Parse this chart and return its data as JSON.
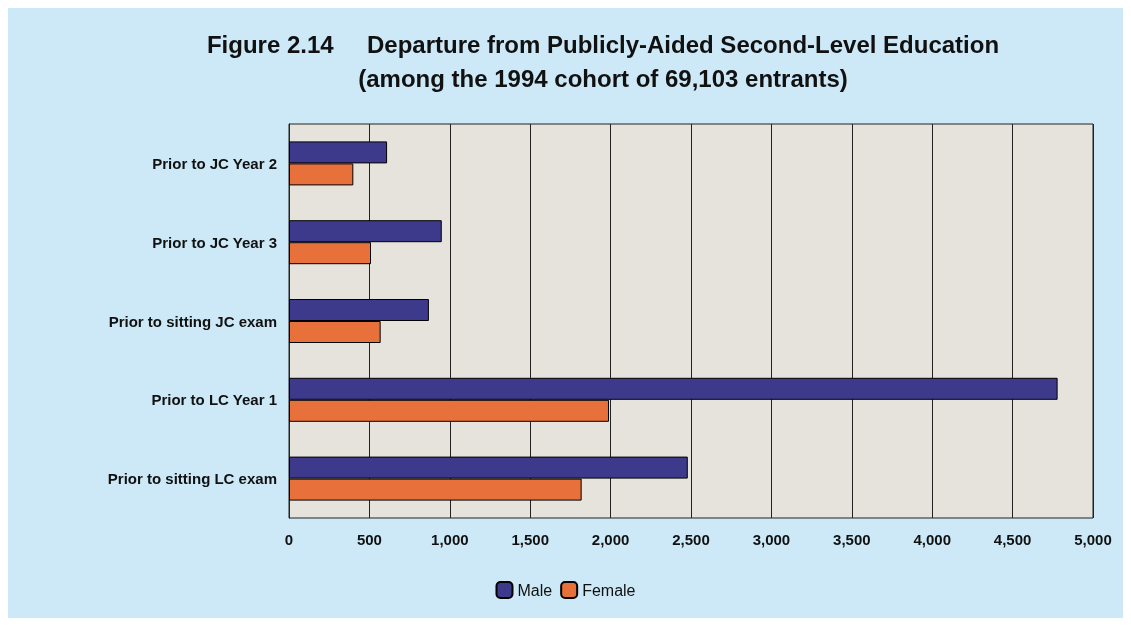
{
  "chart_data": {
    "type": "bar",
    "orientation": "horizontal",
    "title": "Figure 2.14     Departure from Publicly-Aided Second-Level Education\n(among the 1994 cohort of 69,103 entrants)",
    "categories": [
      "Prior to JC Year 2",
      "Prior to JC Year 3",
      "Prior to sitting JC exam",
      "Prior to LC Year 1",
      "Prior to sitting LC exam"
    ],
    "series": [
      {
        "name": "Male",
        "color": "#3d3a8c",
        "values": [
          610,
          950,
          870,
          4780,
          2480
        ]
      },
      {
        "name": "Female",
        "color": "#e8703a",
        "values": [
          400,
          510,
          570,
          1990,
          1820
        ]
      }
    ],
    "xlim": [
      0,
      5000
    ],
    "xticks": [
      {
        "value": 0,
        "label": "0"
      },
      {
        "value": 500,
        "label": "500"
      },
      {
        "value": 1000,
        "label": "1,000"
      },
      {
        "value": 1500,
        "label": "1,500"
      },
      {
        "value": 2000,
        "label": "2,000"
      },
      {
        "value": 2500,
        "label": "2,500"
      },
      {
        "value": 3000,
        "label": "3,000"
      },
      {
        "value": 3500,
        "label": "3,500"
      },
      {
        "value": 4000,
        "label": "4,000"
      },
      {
        "value": 4500,
        "label": "4,500"
      },
      {
        "value": 5000,
        "label": "5,000"
      }
    ],
    "grid": "x",
    "legend": "bottom"
  }
}
